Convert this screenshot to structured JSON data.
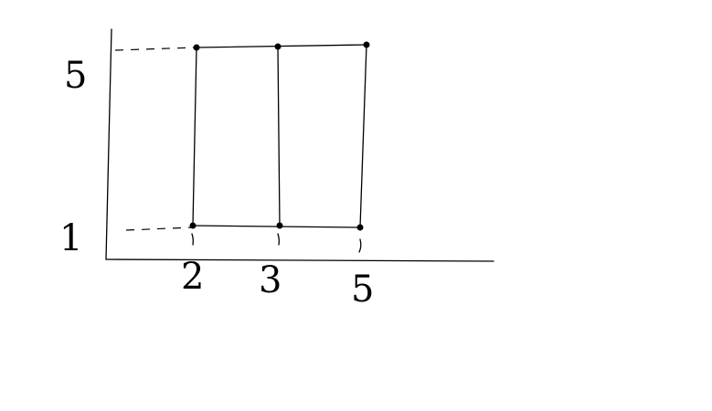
{
  "diagram": {
    "stroke_color": "#000000",
    "background": "#ffffff",
    "y_labels": [
      {
        "value": 5,
        "text": "5"
      },
      {
        "value": 1,
        "text": "1"
      }
    ],
    "x_labels": [
      {
        "value": 2,
        "text": "2"
      },
      {
        "value": 3,
        "text": "3"
      },
      {
        "value": 5,
        "text": "5"
      }
    ],
    "points": [
      {
        "x": 2,
        "y": 5
      },
      {
        "x": 3,
        "y": 5
      },
      {
        "x": 5,
        "y": 5
      },
      {
        "x": 2,
        "y": 1
      },
      {
        "x": 3,
        "y": 1
      },
      {
        "x": 5,
        "y": 1
      }
    ]
  }
}
